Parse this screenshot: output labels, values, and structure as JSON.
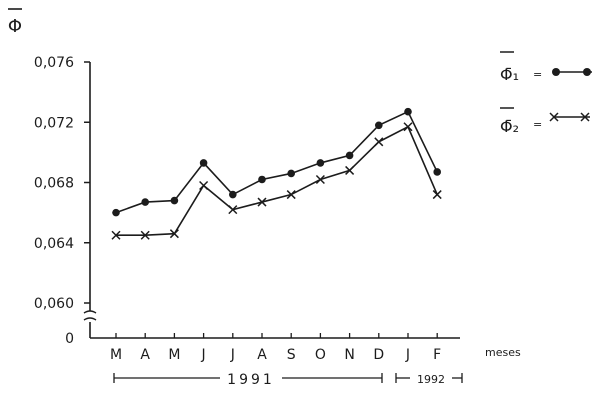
{
  "chart_data": {
    "type": "line",
    "ylabel": "Φ̄",
    "xlabel": "meses",
    "categories": [
      "M",
      "A",
      "M",
      "J",
      "J",
      "A",
      "S",
      "O",
      "N",
      "D",
      "J",
      "F"
    ],
    "year_labels": [
      "1991",
      "1992"
    ],
    "y_ticks": [
      "0,076",
      "0,072",
      "0,068",
      "0,064",
      "0,060"
    ],
    "origin_label": "0",
    "ylim": [
      0.06,
      0.076
    ],
    "grid": false,
    "legend_position": "top-right",
    "series": [
      {
        "name": "Φ̄₁",
        "marker": "circle",
        "values": [
          0.066,
          0.0667,
          0.0668,
          0.0693,
          0.0672,
          0.0682,
          0.0686,
          0.0693,
          0.0698,
          0.0718,
          0.0727,
          0.0687
        ]
      },
      {
        "name": "Φ̄₂",
        "marker": "x",
        "values": [
          0.0645,
          0.0645,
          0.0646,
          0.0678,
          0.0662,
          0.0667,
          0.0672,
          0.0682,
          0.0688,
          0.0707,
          0.0717,
          0.0672
        ]
      }
    ]
  }
}
